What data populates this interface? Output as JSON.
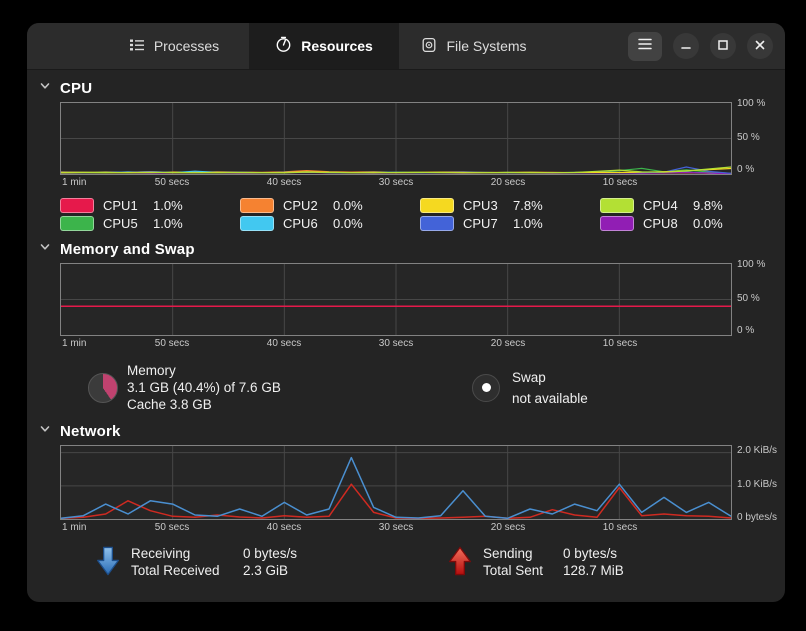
{
  "window": {
    "tabs": [
      {
        "label": "Processes",
        "icon": "process-list-icon",
        "active": false
      },
      {
        "label": "Resources",
        "icon": "gauge-icon",
        "active": true
      },
      {
        "label": "File Systems",
        "icon": "disk-icon",
        "active": false
      }
    ],
    "controls": [
      {
        "name": "main-menu",
        "icon": "hamburger-menu-icon"
      },
      {
        "name": "minimize",
        "icon": "minimize-icon"
      },
      {
        "name": "maximize",
        "icon": "maximize-icon"
      },
      {
        "name": "close",
        "icon": "close-icon"
      }
    ]
  },
  "sections": {
    "cpu": {
      "title": "CPU",
      "legend": [
        {
          "name": "CPU1",
          "value": "1.0%",
          "color": "#e6194b"
        },
        {
          "name": "CPU2",
          "value": "0.0%",
          "color": "#f58231"
        },
        {
          "name": "CPU3",
          "value": "7.8%",
          "color": "#f5d920"
        },
        {
          "name": "CPU4",
          "value": "9.8%",
          "color": "#b3e034"
        },
        {
          "name": "CPU5",
          "value": "1.0%",
          "color": "#3cb44b"
        },
        {
          "name": "CPU6",
          "value": "0.0%",
          "color": "#42c8f0"
        },
        {
          "name": "CPU7",
          "value": "1.0%",
          "color": "#4363d8"
        },
        {
          "name": "CPU8",
          "value": "0.0%",
          "color": "#911eb4"
        }
      ]
    },
    "memory": {
      "title": "Memory and Swap",
      "memory": {
        "label": "Memory",
        "usage": "3.1 GB (40.4%) of 7.6 GB",
        "cache": "Cache 3.8 GB",
        "pie_color": "#c0426f",
        "pie_percent": 40.4
      },
      "swap": {
        "label": "Swap",
        "status": "not available"
      }
    },
    "network": {
      "title": "Network",
      "receiving": {
        "label": "Receiving",
        "rate": "0 bytes/s",
        "total_label": "Total Received",
        "total": "2.3 GiB"
      },
      "sending": {
        "label": "Sending",
        "rate": "0 bytes/s",
        "total_label": "Total Sent",
        "total": "128.7 MiB"
      }
    }
  },
  "chart_data": [
    {
      "id": "cpu-history",
      "type": "line",
      "title": "CPU History (%)",
      "ymax": 100,
      "xrange_seconds": 60,
      "grid": true,
      "legend_position": "below",
      "y_ticks": [
        {
          "label": "100 %",
          "value": 100
        },
        {
          "label": "50 %",
          "value": 50
        },
        {
          "label": "0 %",
          "value": 0
        }
      ],
      "x_ticks": [
        "1 min",
        "50 secs",
        "40 secs",
        "30 secs",
        "20 secs",
        "10 secs"
      ],
      "series": [
        {
          "name": "CPU1",
          "color": "#e6194b",
          "current": 1.0,
          "values": [
            2,
            1.6,
            2.1,
            1.8,
            2.3,
            1.9,
            2.1,
            1.7,
            2.2,
            1.8,
            2,
            2.4,
            1.9,
            1.7,
            2.1,
            2.6,
            1.9,
            1.8,
            2.2,
            1.9,
            1.6,
            2.1,
            1.8,
            1.6,
            1.9,
            1.5,
            1.3,
            1.6,
            1.9,
            1.4,
            1.0
          ]
        },
        {
          "name": "CPU2",
          "color": "#f58231",
          "current": 0.0,
          "values": [
            2.8,
            2.4,
            2.9,
            2.6,
            2.3,
            2.8,
            2.5,
            3.1,
            2.7,
            2.4,
            2.9,
            4.8,
            3.2,
            2.7,
            2.9,
            2.5,
            2.3,
            2.7,
            2.9,
            2.4,
            2.1,
            2.5,
            2.3,
            2.0,
            2.2,
            1.9,
            1.7,
            1.4,
            1.7,
            1.1,
            0.0
          ]
        },
        {
          "name": "CPU5",
          "color": "#3cb44b",
          "current": 1.0,
          "values": [
            1.9,
            2.1,
            2.5,
            2.1,
            3.4,
            2.1,
            1.9,
            2.3,
            2.1,
            1.9,
            2.1,
            2.9,
            2.3,
            1.9,
            2.1,
            2.5,
            2.1,
            1.9,
            2.3,
            2.1,
            1.9,
            2.1,
            1.9,
            2.1,
            2.3,
            4.8,
            7.9,
            3.1,
            5.8,
            2.8,
            1.0
          ]
        },
        {
          "name": "CPU6",
          "color": "#42c8f0",
          "current": 0.0,
          "values": [
            2.3,
            2.1,
            1.9,
            3.1,
            2.1,
            1.9,
            3.9,
            2.3,
            2.1,
            1.9,
            2.1,
            2.5,
            2.1,
            1.9,
            2.3,
            2.1,
            1.9,
            2.1,
            2.3,
            1.9,
            2.1,
            1.9,
            1.7,
            1.9,
            2.1,
            1.9,
            1.7,
            2.1,
            2.5,
            1.4,
            0.0
          ]
        },
        {
          "name": "CPU8",
          "color": "#911eb4",
          "current": 0.0,
          "values": [
            1.3,
            1.6,
            1.9,
            1.6,
            1.3,
            1.6,
            1.9,
            1.6,
            1.3,
            1.6,
            1.9,
            2.3,
            1.9,
            1.6,
            1.3,
            1.6,
            1.9,
            1.6,
            1.3,
            1.6,
            1.9,
            1.6,
            1.3,
            1.6,
            1.9,
            1.6,
            1.3,
            1.6,
            2.1,
            1.4,
            0.0
          ]
        },
        {
          "name": "CPU7",
          "color": "#4363d8",
          "current": 1.0,
          "values": [
            1.6,
            1.9,
            2.1,
            2.6,
            3.4,
            2.1,
            1.9,
            2.1,
            2.3,
            1.9,
            2.1,
            2.7,
            2.1,
            1.9,
            2.1,
            2.3,
            1.9,
            2.1,
            2.3,
            2.1,
            1.9,
            2.1,
            1.9,
            2.1,
            2.3,
            2.1,
            1.9,
            2.6,
            9.9,
            3.8,
            1.0
          ]
        },
        {
          "name": "CPU3",
          "color": "#f5d920",
          "current": 7.8,
          "values": [
            2.1,
            2.3,
            1.9,
            2.1,
            2.5,
            2.0,
            1.8,
            2.3,
            2.1,
            1.9,
            2.1,
            3.1,
            2.5,
            2.0,
            2.3,
            1.9,
            2.1,
            2.5,
            2.0,
            1.9,
            2.1,
            2.3,
            1.9,
            2.1,
            2.3,
            2.1,
            2.6,
            3.2,
            4.5,
            6.2,
            7.8
          ]
        },
        {
          "name": "CPU4",
          "color": "#b3e034",
          "current": 9.8,
          "values": [
            1.6,
            1.9,
            2.1,
            1.7,
            1.9,
            2.3,
            1.9,
            1.7,
            2.1,
            1.9,
            1.7,
            2.6,
            2.1,
            1.9,
            1.7,
            2.1,
            2.3,
            1.9,
            1.7,
            1.9,
            2.1,
            1.7,
            1.9,
            2.1,
            3.8,
            5.5,
            2.9,
            2.6,
            4.2,
            7.0,
            9.8
          ]
        }
      ]
    },
    {
      "id": "memory-history",
      "type": "line",
      "title": "Memory and Swap History (%)",
      "ymax": 100,
      "xrange_seconds": 60,
      "grid": true,
      "y_ticks": [
        {
          "label": "100 %",
          "value": 100
        },
        {
          "label": "50 %",
          "value": 50
        },
        {
          "label": "0 %",
          "value": 0
        }
      ],
      "x_ticks": [
        "1 min",
        "50 secs",
        "40 secs",
        "30 secs",
        "20 secs",
        "10 secs"
      ],
      "series": [
        {
          "name": "Memory",
          "color": "#e6194b",
          "current": 40.4,
          "values": [
            40.4,
            40.4
          ]
        }
      ]
    },
    {
      "id": "network-history",
      "type": "line",
      "title": "Network History (KiB/s)",
      "ymax": 2.2,
      "xrange_seconds": 60,
      "grid": true,
      "y_ticks": [
        {
          "label": "2.0 KiB/s",
          "value": 2
        },
        {
          "label": "1.0 KiB/s",
          "value": 1
        },
        {
          "label": "0 bytes/s",
          "value": 0
        }
      ],
      "x_ticks": [
        "1 min",
        "50 secs",
        "40 secs",
        "30 secs",
        "20 secs",
        "10 secs"
      ],
      "series": [
        {
          "name": "Sending",
          "color": "#cf2a21",
          "current": 0,
          "values": [
            0.02,
            0.05,
            0.15,
            0.55,
            0.25,
            0.08,
            0.05,
            0.12,
            0.06,
            0.03,
            0.1,
            0.05,
            0.08,
            1.05,
            0.2,
            0.03,
            0.02,
            0.03,
            0.05,
            0.08,
            0.02,
            0.05,
            0.28,
            0.12,
            0.05,
            0.95,
            0.1,
            0.15,
            0.1,
            0.08,
            0.03
          ]
        },
        {
          "name": "Receiving",
          "color": "#4a8fd0",
          "current": 0,
          "values": [
            0.02,
            0.1,
            0.45,
            0.15,
            0.55,
            0.45,
            0.12,
            0.08,
            0.3,
            0.08,
            0.5,
            0.12,
            0.3,
            1.85,
            0.35,
            0.05,
            0.03,
            0.1,
            0.85,
            0.08,
            0.02,
            0.3,
            0.15,
            0.45,
            0.25,
            1.05,
            0.2,
            0.65,
            0.2,
            0.5,
            0.08
          ]
        }
      ]
    }
  ]
}
